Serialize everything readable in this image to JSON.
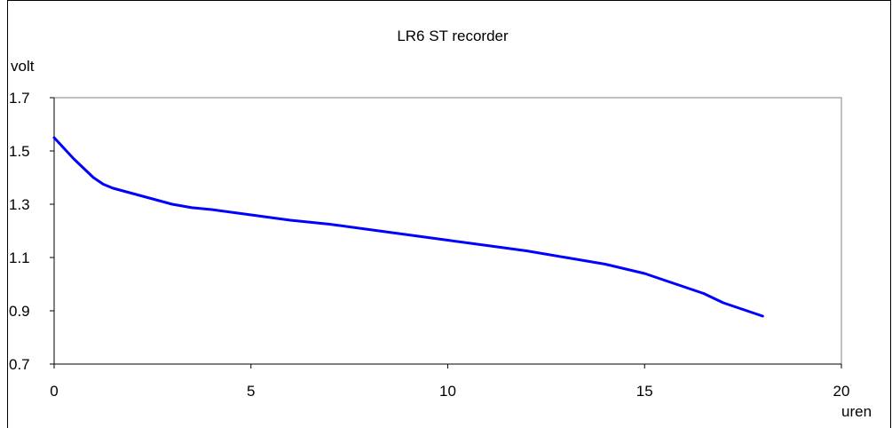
{
  "chart_data": {
    "type": "line",
    "title": "LR6 ST  recorder",
    "xlabel": "uren",
    "ylabel": "volt",
    "xlim": [
      0,
      20
    ],
    "ylim": [
      0.7,
      1.7
    ],
    "xticks": [
      0,
      5,
      10,
      15,
      20
    ],
    "yticks": [
      0.7,
      0.9,
      1.1,
      1.3,
      1.5,
      1.7
    ],
    "grid": false,
    "series_color": "#0000ff",
    "series": [
      {
        "x": [
          0,
          0.5,
          1,
          1.25,
          1.5,
          2,
          2.5,
          3,
          3.5,
          4,
          5,
          6,
          7,
          8,
          9,
          10,
          11,
          12,
          13,
          14,
          15,
          15.5,
          16,
          16.5,
          17,
          17.5,
          18
        ],
        "y": [
          1.55,
          1.47,
          1.4,
          1.375,
          1.36,
          1.34,
          1.32,
          1.3,
          1.287,
          1.28,
          1.26,
          1.24,
          1.225,
          1.205,
          1.185,
          1.165,
          1.145,
          1.125,
          1.1,
          1.075,
          1.04,
          1.015,
          0.99,
          0.965,
          0.93,
          0.905,
          0.88
        ]
      }
    ]
  }
}
